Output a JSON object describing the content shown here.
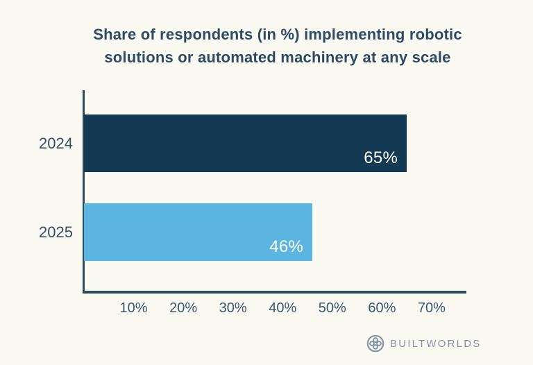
{
  "title": {
    "line1": "Share of respondents (in %) implementing robotic",
    "line2": "solutions or automated machinery at any scale"
  },
  "chart_data": {
    "type": "bar",
    "orientation": "horizontal",
    "title": "Share of respondents (in %) implementing robotic solutions or automated machinery at any scale",
    "categories": [
      "2024",
      "2025"
    ],
    "values": [
      65,
      46
    ],
    "value_labels": [
      "65%",
      "46%"
    ],
    "bar_colors": [
      "#133a52",
      "#5cb4e0"
    ],
    "xlabel": "",
    "ylabel": "",
    "axis": {
      "min": 0,
      "max": 77,
      "tick_values": [
        10,
        20,
        30,
        40,
        50,
        60,
        70
      ],
      "tick_labels": [
        "10%",
        "20%",
        "30%",
        "40%",
        "50%",
        "60%",
        "70%"
      ]
    },
    "grid": false,
    "legend": false,
    "value_label_position": "inside-end",
    "value_label_color": "#ffffff"
  },
  "colors": {
    "background": "#faf9f2",
    "title_text": "#2c4a63",
    "axis_line": "#2e4a5f",
    "tick_text": "#395670",
    "category_text": "#33506a",
    "brand": "#8495a5"
  },
  "footer": {
    "brand": "BUILTWORLDS",
    "icon": "builtworlds-clover-gear-icon"
  }
}
